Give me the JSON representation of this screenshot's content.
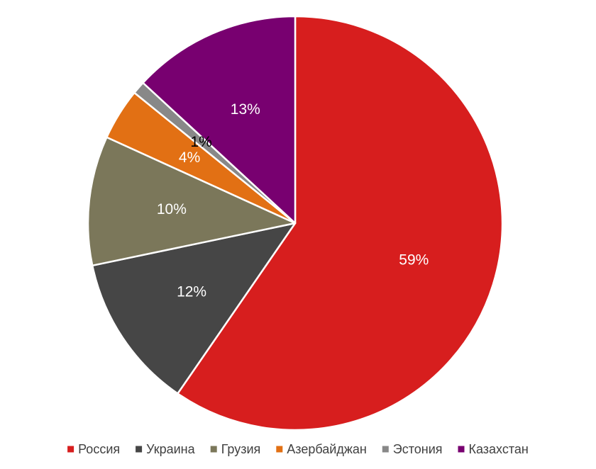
{
  "chart_data": {
    "type": "pie",
    "title": "",
    "slices": [
      {
        "label": "Россия",
        "value": 59,
        "display": "59%",
        "color": "#d71e1e",
        "label_color": "#ffffff"
      },
      {
        "label": "Украина",
        "value": 12,
        "display": "12%",
        "color": "#464646",
        "label_color": "#ffffff"
      },
      {
        "label": "Грузия",
        "value": 10,
        "display": "10%",
        "color": "#7b775a",
        "label_color": "#ffffff"
      },
      {
        "label": "Азербайджан",
        "value": 4,
        "display": "4%",
        "color": "#e27014",
        "label_color": "#ffffff"
      },
      {
        "label": "Эстония",
        "value": 1,
        "display": "1%",
        "color": "#888888",
        "label_color": "#000000"
      },
      {
        "label": "Казахстан",
        "value": 13,
        "display": "13%",
        "color": "#780070",
        "label_color": "#ffffff"
      }
    ],
    "start_angle": "12 o'clock",
    "direction": "clockwise",
    "legend_position": "bottom"
  }
}
